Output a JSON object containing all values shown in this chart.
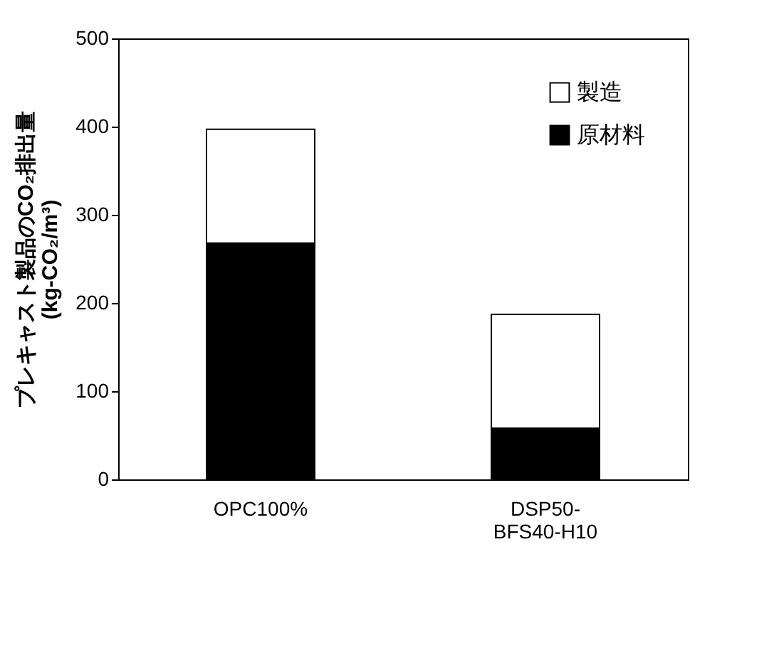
{
  "chart_data": {
    "type": "bar",
    "stacked": true,
    "ylabel": "プレキャスト製品のCO₂排出量\n(kg-CO₂/m³)",
    "categories": [
      "OPC100%",
      "DSP50-BFS40-H10"
    ],
    "series": [
      {
        "name": "原材料",
        "color": "#000000",
        "values": [
          268,
          58
        ]
      },
      {
        "name": "製造",
        "color": "#ffffff",
        "values": [
          129,
          129
        ]
      }
    ],
    "ylim": [
      0,
      500
    ],
    "yticks": [
      0,
      100,
      200,
      300,
      400,
      500
    ],
    "grid": false,
    "legend": "top right"
  }
}
